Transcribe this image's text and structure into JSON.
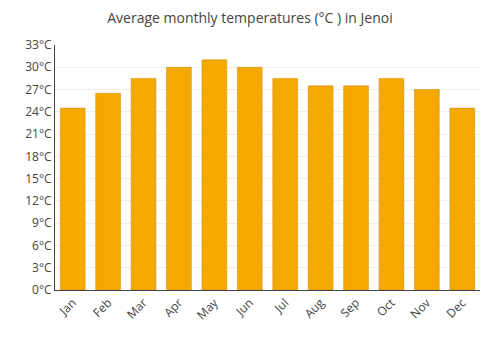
{
  "chart_data": {
    "type": "bar",
    "title": "Average monthly temperatures (°C ) in Jenoi",
    "categories": [
      "Jan",
      "Feb",
      "Mar",
      "Apr",
      "May",
      "Jun",
      "Jul",
      "Aug",
      "Sep",
      "Oct",
      "Nov",
      "Dec"
    ],
    "values": [
      24.5,
      26.5,
      28.5,
      30.0,
      31.0,
      30.0,
      28.5,
      27.5,
      27.5,
      28.5,
      27.0,
      24.5
    ],
    "color": "#F5A800",
    "ylim": [
      0,
      33
    ],
    "yticks": [
      {
        "value": 0,
        "label": "0°C"
      },
      {
        "value": 3,
        "label": "3°C"
      },
      {
        "value": 6,
        "label": "6°C"
      },
      {
        "value": 9,
        "label": "9°C"
      },
      {
        "value": 12,
        "label": "12°C"
      },
      {
        "value": 15,
        "label": "15°C"
      },
      {
        "value": 18,
        "label": "18°C"
      },
      {
        "value": 21,
        "label": "21°C"
      },
      {
        "value": 24,
        "label": "24°C"
      },
      {
        "value": 27,
        "label": "27°C"
      },
      {
        "value": 30,
        "label": "30°C"
      },
      {
        "value": 33,
        "label": "33°C"
      }
    ],
    "grid": true
  }
}
